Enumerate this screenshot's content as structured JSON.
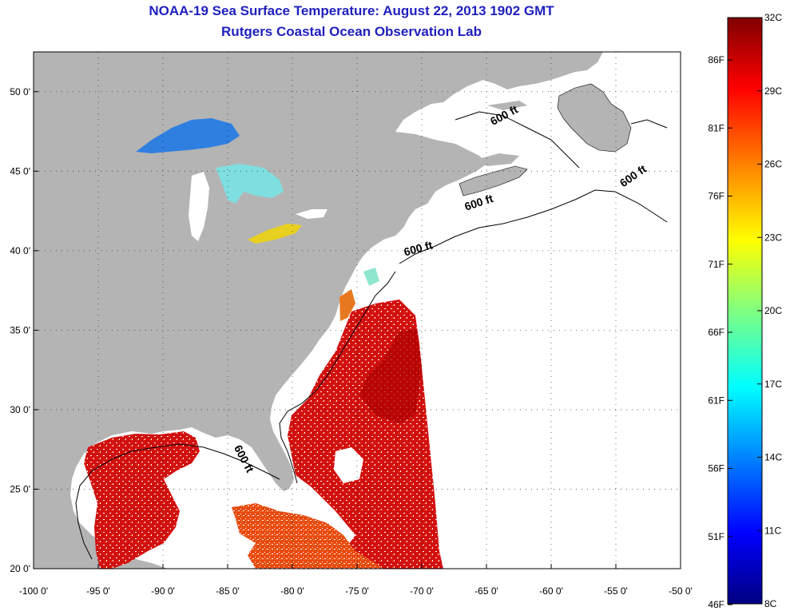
{
  "title": "NOAA-19 Sea Surface Temperature:  August 22, 2013 1902 GMT",
  "subtitle": "Rutgers Coastal Ocean Observation Lab",
  "map": {
    "lon_range": [
      -100,
      -50
    ],
    "lat_range": [
      20,
      52.5
    ],
    "lon_ticks": [
      {
        "value": -100,
        "label": "-100 0'"
      },
      {
        "value": -95,
        "label": "-95 0'"
      },
      {
        "value": -90,
        "label": "-90 0'"
      },
      {
        "value": -85,
        "label": "-85 0'"
      },
      {
        "value": -80,
        "label": "-80 0'"
      },
      {
        "value": -75,
        "label": "-75 0'"
      },
      {
        "value": -70,
        "label": "-70 0'"
      },
      {
        "value": -65,
        "label": "-65 0'"
      },
      {
        "value": -60,
        "label": "-60 0'"
      },
      {
        "value": -55,
        "label": "-55 0'"
      },
      {
        "value": -50,
        "label": "-50 0'"
      }
    ],
    "lat_ticks": [
      {
        "value": 50,
        "label": "50 0'"
      },
      {
        "value": 45,
        "label": "45 0'"
      },
      {
        "value": 40,
        "label": "40 0'"
      },
      {
        "value": 35,
        "label": "35 0'"
      },
      {
        "value": 30,
        "label": "30 0'"
      },
      {
        "value": 25,
        "label": "25 0'"
      },
      {
        "value": 20,
        "label": "20 0'"
      }
    ],
    "grid": "dotted",
    "contour_labels": [
      {
        "text": "600 ft",
        "lon": -63.5,
        "lat": 48.3
      },
      {
        "text": "600 ft",
        "lon": -53.5,
        "lat": 44.5
      },
      {
        "text": "600 ft",
        "lon": -65.5,
        "lat": 42.8
      },
      {
        "text": "600 ft",
        "lon": -70.2,
        "lat": 39.9
      },
      {
        "text": "600 ft",
        "lon": -84,
        "lat": 26.8
      }
    ],
    "land_color": "#b4b4b4",
    "ocean_nodata_color": "#ffffff"
  },
  "colorbar": {
    "min_c": 8,
    "max_c": 32,
    "celsius_labels": [
      "32C",
      "29C",
      "26C",
      "23C",
      "20C",
      "17C",
      "14C",
      "11C",
      "8C"
    ],
    "fahrenheit_labels": [
      "86F",
      "81F",
      "76F",
      "71F",
      "66F",
      "61F",
      "56F",
      "51F",
      "46F"
    ],
    "colors": [
      "#800000",
      "#ff0000",
      "#ff8000",
      "#ffff00",
      "#80ff80",
      "#00ffff",
      "#0080ff",
      "#0000ff",
      "#000080"
    ]
  }
}
